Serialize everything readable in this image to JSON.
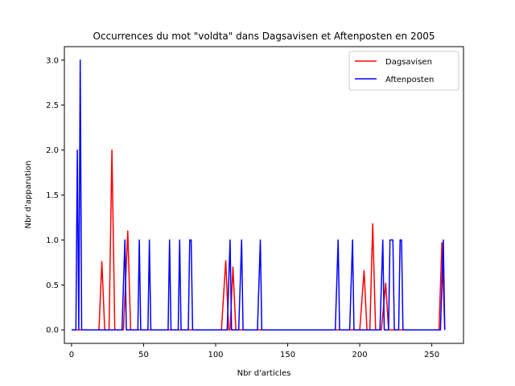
{
  "chart_data": {
    "type": "line",
    "title": "Occurrences du mot \"voldta\" dans Dagsavisen et Aftenposten en 2005",
    "xlabel": "Nbr d'articles",
    "ylabel": "Nbr d'apparution",
    "xlim": [
      -5,
      272
    ],
    "ylim": [
      -0.15,
      3.15
    ],
    "xticks": [
      0,
      50,
      100,
      150,
      200,
      250
    ],
    "xtick_labels": [
      "0",
      "50",
      "100",
      "150",
      "200",
      "250"
    ],
    "yticks": [
      0.0,
      0.5,
      1.0,
      1.5,
      2.0,
      2.5,
      3.0
    ],
    "ytick_labels": [
      "0.0",
      "0.5",
      "1.0",
      "1.5",
      "2.0",
      "2.5",
      "3.0"
    ],
    "grid": false,
    "legend_position": "top-right",
    "series": [
      {
        "name": "Dagsavisen",
        "color": "#ff0000",
        "points": [
          [
            0,
            0
          ],
          [
            19,
            0
          ],
          [
            21,
            0.76
          ],
          [
            23,
            0
          ],
          [
            26,
            0
          ],
          [
            28,
            2.0
          ],
          [
            30,
            0
          ],
          [
            36,
            0
          ],
          [
            39,
            1.1
          ],
          [
            41,
            0
          ],
          [
            104,
            0
          ],
          [
            107,
            0.77
          ],
          [
            109,
            0
          ],
          [
            110,
            0
          ],
          [
            112,
            0.7
          ],
          [
            114,
            0
          ],
          [
            200,
            0
          ],
          [
            203,
            0.66
          ],
          [
            205,
            0
          ],
          [
            207,
            0
          ],
          [
            209,
            1.18
          ],
          [
            211,
            0
          ],
          [
            215,
            0
          ],
          [
            218,
            0.52
          ],
          [
            220,
            0
          ],
          [
            255,
            0
          ],
          [
            257,
            0.97
          ],
          [
            259,
            0
          ]
        ]
      },
      {
        "name": "Aftenposten",
        "color": "#0000ff",
        "points": [
          [
            0,
            0
          ],
          [
            3,
            0
          ],
          [
            4,
            2.0
          ],
          [
            5,
            0
          ],
          [
            6,
            3.0
          ],
          [
            7,
            0
          ],
          [
            35,
            0
          ],
          [
            37,
            1.0
          ],
          [
            38,
            0
          ],
          [
            46,
            0
          ],
          [
            47,
            1.0
          ],
          [
            48,
            0
          ],
          [
            53,
            0
          ],
          [
            54,
            1.0
          ],
          [
            55,
            0
          ],
          [
            67,
            0
          ],
          [
            68,
            1.0
          ],
          [
            69,
            0
          ],
          [
            74,
            0
          ],
          [
            75,
            1.0
          ],
          [
            76,
            0
          ],
          [
            81,
            0
          ],
          [
            82,
            1.0
          ],
          [
            83,
            1.0
          ],
          [
            84,
            0
          ],
          [
            108,
            0
          ],
          [
            110,
            1.0
          ],
          [
            111,
            0
          ],
          [
            116,
            0
          ],
          [
            118,
            1.0
          ],
          [
            119,
            0
          ],
          [
            129,
            0
          ],
          [
            131,
            1.0
          ],
          [
            132,
            0
          ],
          [
            183,
            0
          ],
          [
            185,
            1.0
          ],
          [
            186,
            0
          ],
          [
            193,
            0
          ],
          [
            195,
            1.0
          ],
          [
            196,
            0
          ],
          [
            214,
            0
          ],
          [
            216,
            1.0
          ],
          [
            217,
            0
          ],
          [
            220,
            0
          ],
          [
            221,
            1.0
          ],
          [
            223,
            1.0
          ],
          [
            224,
            0
          ],
          [
            227,
            0
          ],
          [
            228,
            1.0
          ],
          [
            229,
            1.0
          ],
          [
            230,
            0
          ],
          [
            256,
            0
          ],
          [
            258,
            1.0
          ],
          [
            259,
            0
          ]
        ]
      }
    ]
  }
}
